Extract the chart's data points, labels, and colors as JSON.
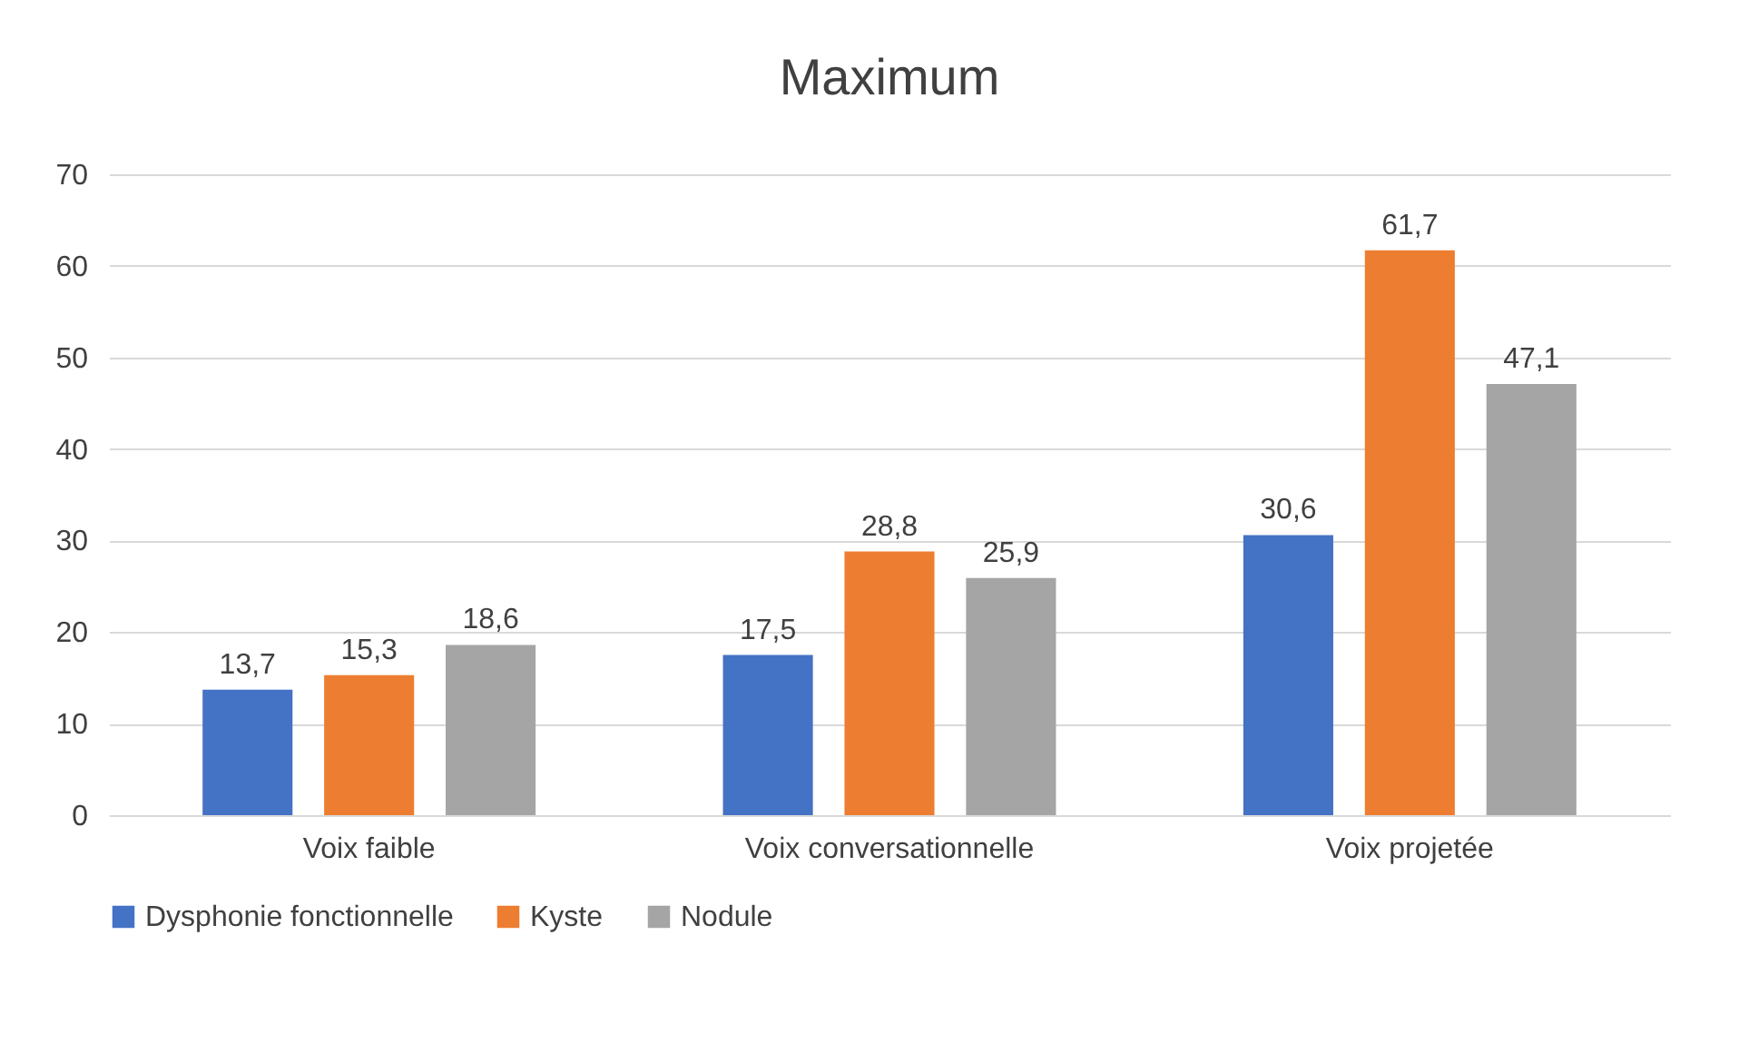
{
  "chart_data": {
    "type": "bar",
    "title": "Maximum",
    "categories": [
      "Voix faible",
      "Voix conversationnelle",
      "Voix projetée"
    ],
    "series": [
      {
        "name": "Dysphonie fonctionnelle",
        "color": "#4472c4",
        "values": [
          13.7,
          17.5,
          30.6
        ],
        "value_labels": [
          "13,7",
          "17,5",
          "30,6"
        ]
      },
      {
        "name": "Kyste",
        "color": "#ed7d31",
        "values": [
          15.3,
          28.8,
          61.7
        ],
        "value_labels": [
          "15,3",
          "28,8",
          "61,7"
        ]
      },
      {
        "name": "Nodule",
        "color": "#a5a5a5",
        "values": [
          18.6,
          25.9,
          47.1
        ],
        "value_labels": [
          "18,6",
          "25,9",
          "47,1"
        ]
      }
    ],
    "ylim": [
      0,
      70
    ],
    "yticks": [
      0,
      10,
      20,
      30,
      40,
      50,
      60,
      70
    ],
    "grid": "y",
    "legend": "bottom"
  }
}
